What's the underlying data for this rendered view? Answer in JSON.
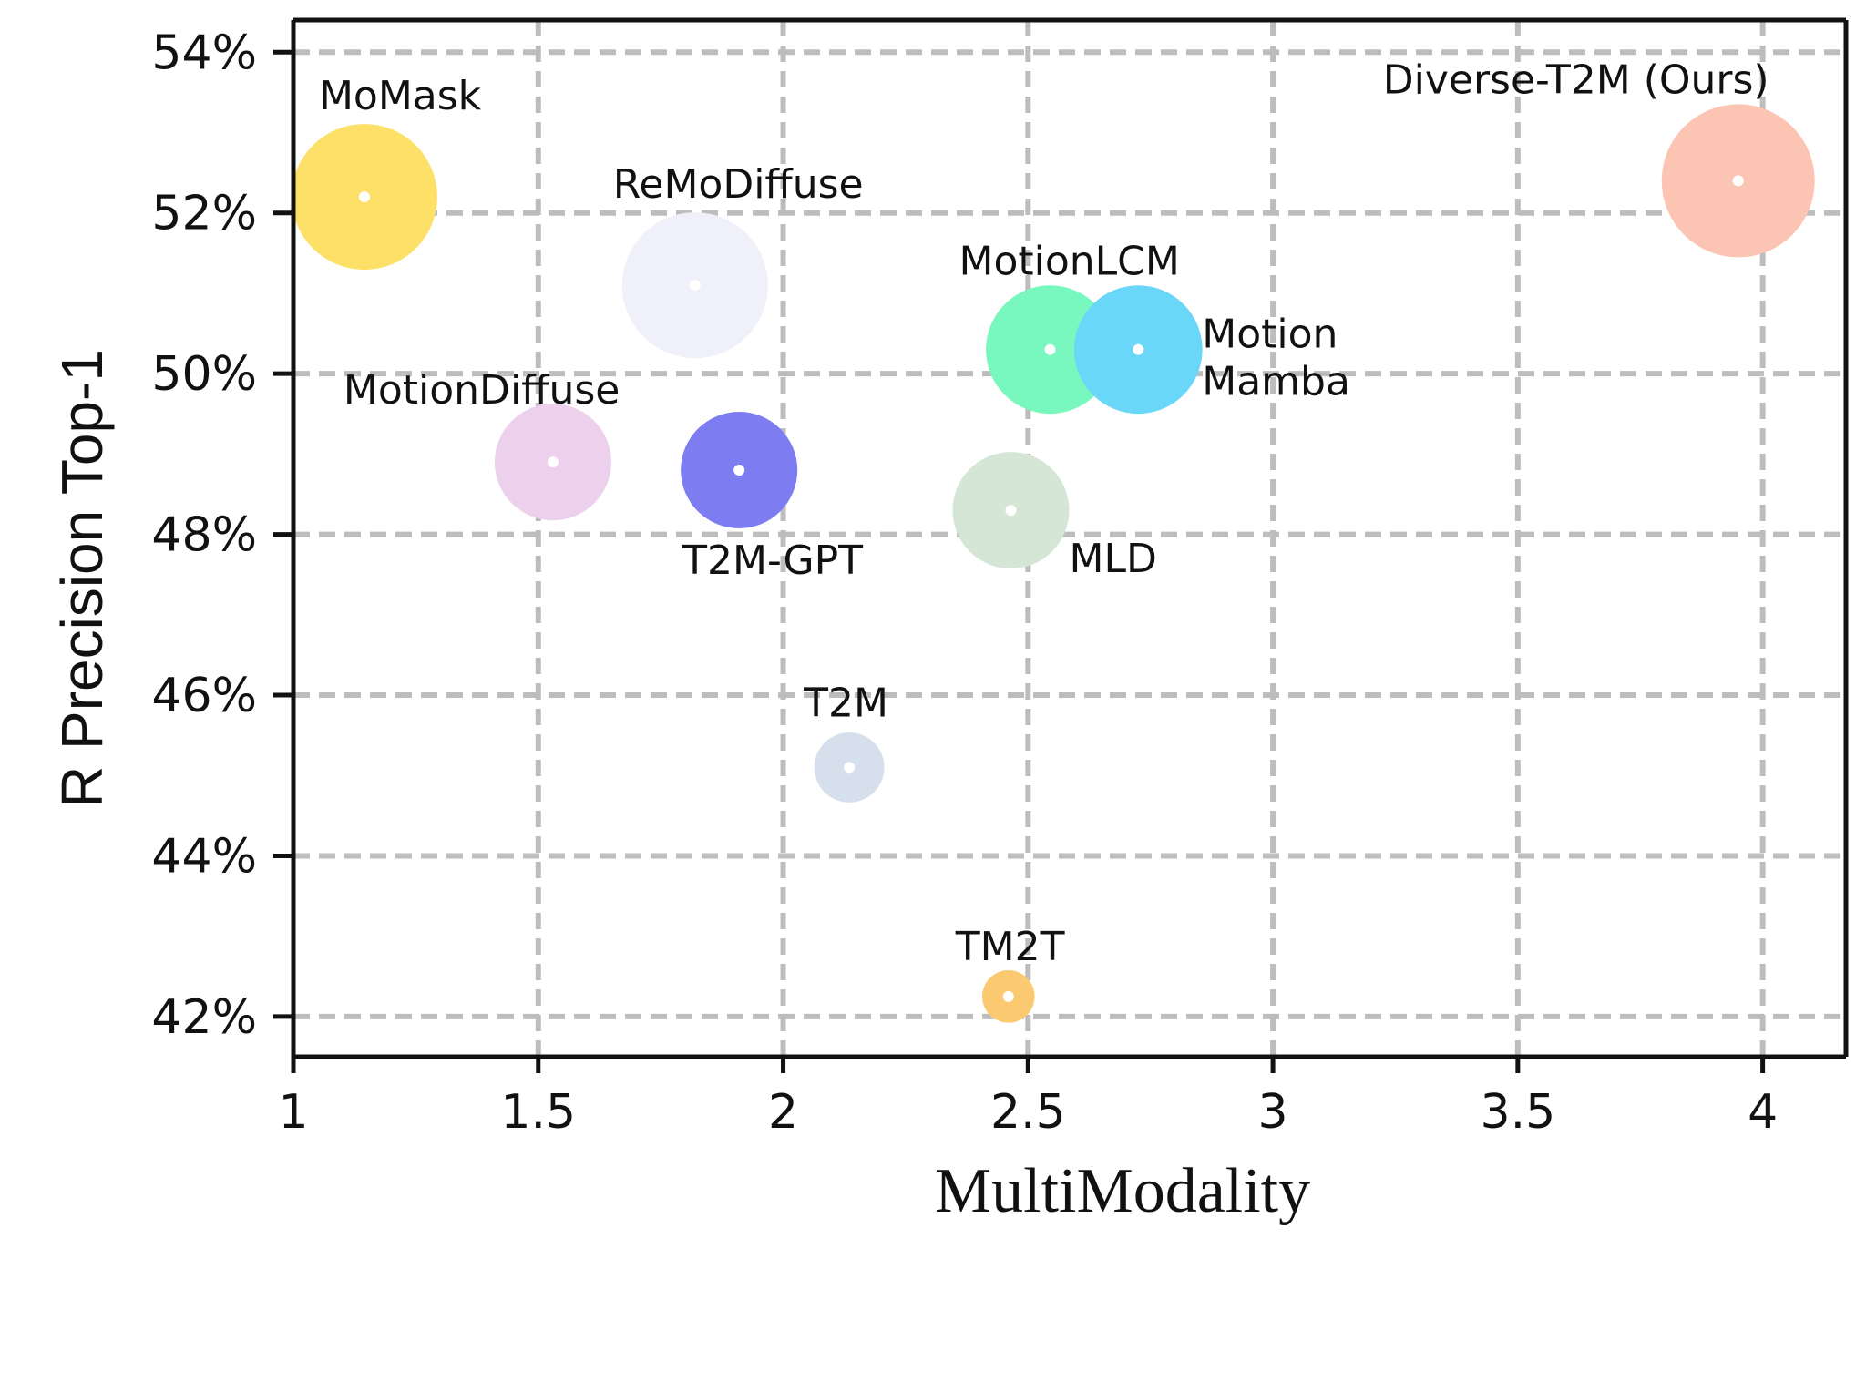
{
  "chart_data": {
    "type": "scatter",
    "title": "",
    "xlabel": "MultiModality",
    "ylabel": "R Precision Top-1",
    "xlim": [
      1,
      4.17
    ],
    "ylim": [
      41.5,
      54.4
    ],
    "xticks": [
      1,
      1.5,
      2,
      2.5,
      3,
      3.5,
      4
    ],
    "xtick_labels": [
      "1",
      "1.5",
      "2",
      "2.5",
      "3",
      "3.5",
      "4"
    ],
    "yticks": [
      42,
      44,
      46,
      48,
      50,
      52,
      54
    ],
    "ytick_labels": [
      "42%",
      "44%",
      "46%",
      "48%",
      "50%",
      "52%",
      "54%"
    ],
    "grid": true,
    "points": [
      {
        "name": "MoMask",
        "label": "MoMask",
        "x": 1.145,
        "y": 52.2,
        "size": 1.0,
        "color": "#fde068"
      },
      {
        "name": "ReMoDiffuse",
        "label": "ReMoDiffuse",
        "x": 1.82,
        "y": 51.1,
        "size": 1.0,
        "color": "#eff0f9"
      },
      {
        "name": "MotionLCM",
        "label": "MotionLCM",
        "x": 2.545,
        "y": 50.3,
        "size": 0.88,
        "color": "#78f7be"
      },
      {
        "name": "MotionMamba",
        "label": "Motion\nMamba",
        "x": 2.725,
        "y": 50.3,
        "size": 0.88,
        "color": "#6bd7f8"
      },
      {
        "name": "MotionDiffuse",
        "label": "MotionDiffuse",
        "x": 1.53,
        "y": 48.9,
        "size": 0.8,
        "color": "#ecd0ec"
      },
      {
        "name": "T2M-GPT",
        "label": "T2M-GPT",
        "x": 1.91,
        "y": 48.8,
        "size": 0.8,
        "color": "#7d7cf0"
      },
      {
        "name": "MLD",
        "label": "MLD",
        "x": 2.465,
        "y": 48.3,
        "size": 0.8,
        "color": "#d5e5d6"
      },
      {
        "name": "T2M",
        "label": "T2M",
        "x": 2.135,
        "y": 45.1,
        "size": 0.48,
        "color": "#d6e0ed"
      },
      {
        "name": "TM2T",
        "label": "TM2T",
        "x": 2.46,
        "y": 42.25,
        "size": 0.36,
        "color": "#fbca70"
      },
      {
        "name": "Diverse-T2M",
        "label": "Diverse-T2M  (Ours)",
        "x": 3.95,
        "y": 52.4,
        "size": 1.05,
        "color": "#fcc5b3"
      }
    ]
  }
}
